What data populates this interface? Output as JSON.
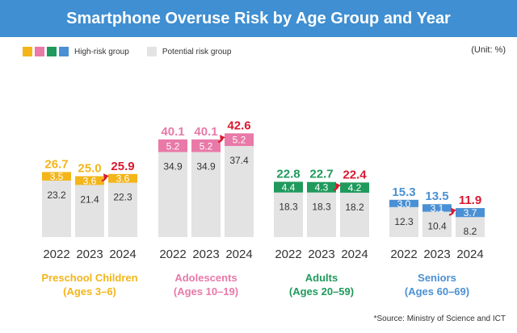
{
  "title": "Smartphone Overuse Risk by Age Group and Year",
  "legend": {
    "high_risk": "High-risk group",
    "potential_risk": "Potential risk group"
  },
  "unit": "(Unit: %)",
  "source": "*Source: Ministry of Science and ICT",
  "colors": {
    "title_bg": "#3f8fd2",
    "potential": "#e3e3e3",
    "highlight_total": "#d8192f",
    "arrow": "#d8192f",
    "preschool": "#f3b51a",
    "adolescents": "#e879a8",
    "adults": "#1f9a5c",
    "seniors": "#4a90d4"
  },
  "chart_data": {
    "type": "bar",
    "stacked": true,
    "title": "Smartphone Overuse Risk by Age Group and Year",
    "unit": "%",
    "series_names": [
      "High-risk group",
      "Potential risk group"
    ],
    "groups": [
      {
        "name": "Preschool Children",
        "ages": "(Ages 3–6)",
        "color_key": "preschool",
        "years": [
          "2022",
          "2023",
          "2024"
        ],
        "high": [
          3.5,
          3.6,
          3.6
        ],
        "high_labels": [
          "3.5",
          "3.6",
          "3.6"
        ],
        "potential": [
          23.2,
          21.4,
          22.3
        ],
        "potential_labels": [
          "23.2",
          "21.4",
          "22.3"
        ],
        "totals": [
          26.7,
          25.0,
          25.9
        ],
        "total_labels": [
          "26.7",
          "25.0",
          "25.9"
        ]
      },
      {
        "name": "Adolescents",
        "ages": "(Ages 10–19)",
        "color_key": "adolescents",
        "years": [
          "2022",
          "2023",
          "2024"
        ],
        "high": [
          5.2,
          5.2,
          5.2
        ],
        "high_labels": [
          "5.2",
          "5.2",
          "5.2"
        ],
        "potential": [
          34.9,
          34.9,
          37.4
        ],
        "potential_labels": [
          "34.9",
          "34.9",
          "37.4"
        ],
        "totals": [
          40.1,
          40.1,
          42.6
        ],
        "total_labels": [
          "40.1",
          "40.1",
          "42.6"
        ]
      },
      {
        "name": "Adults",
        "ages": "(Ages 20–59)",
        "color_key": "adults",
        "years": [
          "2022",
          "2023",
          "2024"
        ],
        "high": [
          4.4,
          4.3,
          4.2
        ],
        "high_labels": [
          "4.4",
          "4.3",
          "4.2"
        ],
        "potential": [
          18.3,
          18.3,
          18.2
        ],
        "potential_labels": [
          "18.3",
          "18.3",
          "18.2"
        ],
        "totals": [
          22.8,
          22.7,
          22.4
        ],
        "total_labels": [
          "22.8",
          "22.7",
          "22.4"
        ]
      },
      {
        "name": "Seniors",
        "ages": "(Ages 60–69)",
        "color_key": "seniors",
        "years": [
          "2022",
          "2023",
          "2024"
        ],
        "high": [
          3.0,
          3.1,
          3.7
        ],
        "high_labels": [
          "3.0",
          "3.1",
          "3.7"
        ],
        "potential": [
          12.3,
          10.4,
          8.2
        ],
        "potential_labels": [
          "12.3",
          "10.4",
          "8.2"
        ],
        "totals": [
          15.3,
          13.5,
          11.9
        ],
        "total_labels": [
          "15.3",
          "13.5",
          "11.9"
        ]
      }
    ]
  }
}
